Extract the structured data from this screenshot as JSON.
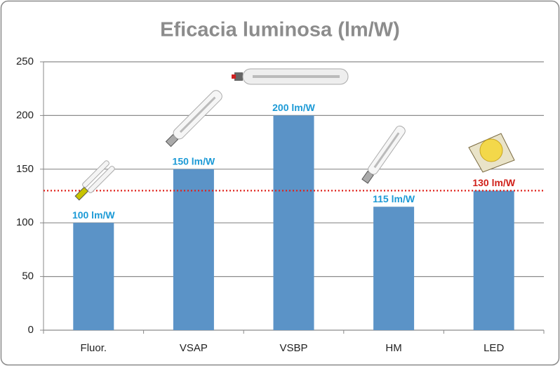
{
  "chart_data": {
    "type": "bar",
    "title": "Eficacia luminosa (lm/W)",
    "categories": [
      "Fluor.",
      "VSAP",
      "VSBP",
      "HM",
      "LED"
    ],
    "values": [
      100,
      150,
      200,
      115,
      130
    ],
    "value_labels": [
      "100 lm/W",
      "150 lm/W",
      "200 lm/W",
      "115 lm/W",
      "130 lm/W"
    ],
    "value_label_colors": [
      "#1c9ad6",
      "#1c9ad6",
      "#1c9ad6",
      "#1c9ad6",
      "#d0201a"
    ],
    "color": "#5b93c7",
    "ylim": [
      0,
      250
    ],
    "yticks": [
      0,
      50,
      100,
      150,
      200,
      250
    ],
    "grid": true,
    "reference_line": {
      "value": 130,
      "color": "#e0201a"
    }
  }
}
